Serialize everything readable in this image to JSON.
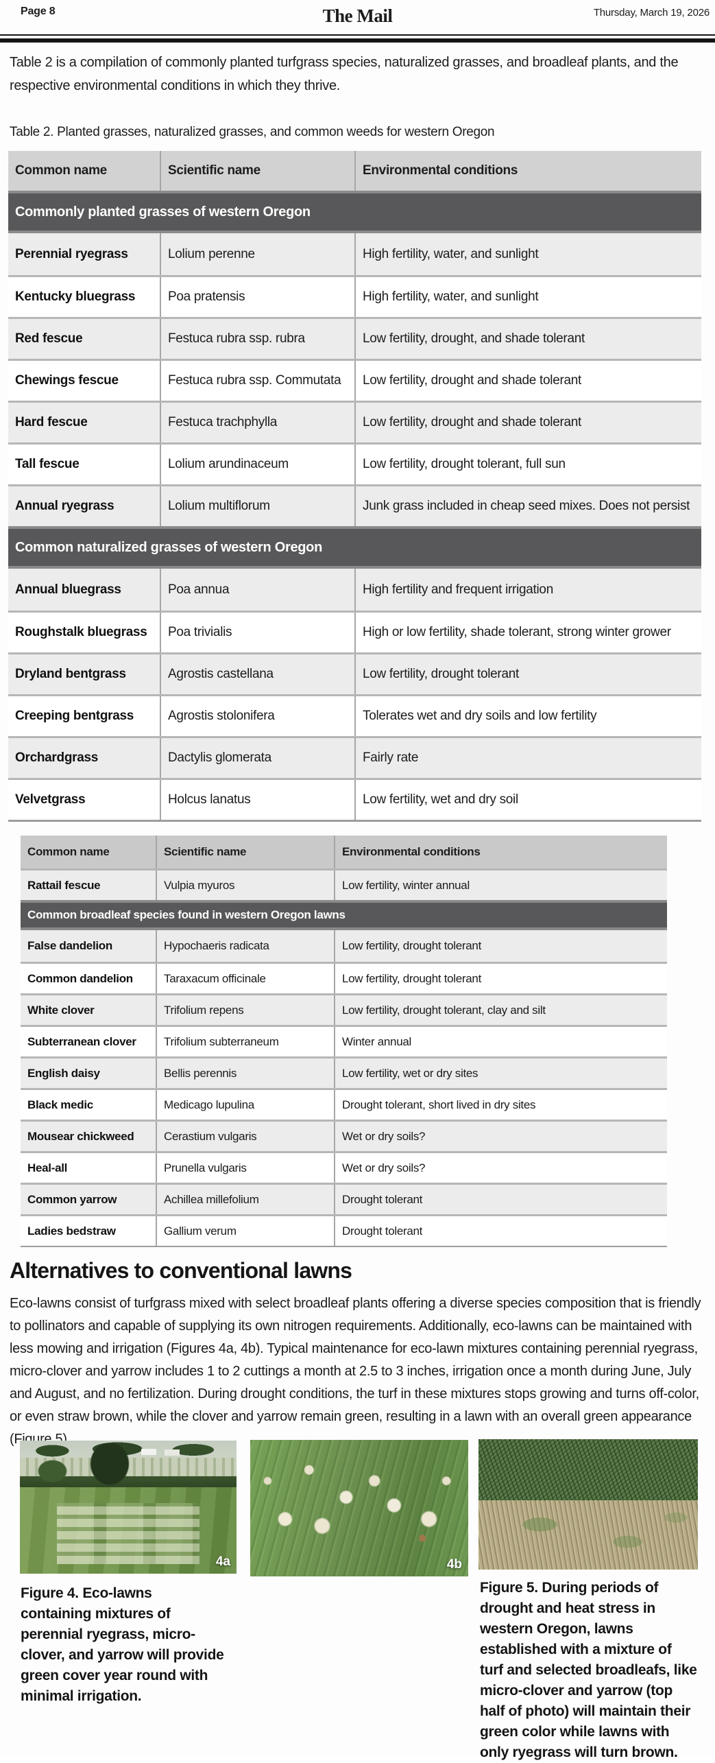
{
  "page": {
    "number_label": "Page 8",
    "masthead": "The Mail",
    "date": "Thursday, March 19, 2026"
  },
  "intro": {
    "line1": "Table 2 is a compilation of commonly planted turfgrass species, naturalized grasses, and broadleaf plants, and the",
    "line2": "respective environmental conditions in which they thrive."
  },
  "table_caption": "Table 2. Planted grasses, naturalized grasses, and common weeds for western Oregon",
  "table1": {
    "headers": [
      "Common name",
      "Scientific name",
      "Environmental conditions"
    ],
    "sections": [
      {
        "title": "Commonly planted grasses of western Oregon",
        "rows": [
          [
            "Perennial ryegrass",
            "Lolium perenne",
            "High fertility, water, and sunlight"
          ],
          [
            "Kentucky bluegrass",
            "Poa pratensis",
            "High fertility, water, and sunlight"
          ],
          [
            "Red fescue",
            "Festuca rubra ssp. rubra",
            "Low fertility, drought, and shade tolerant"
          ],
          [
            "Chewings fescue",
            "Festuca rubra ssp. Commutata",
            "Low fertility, drought and shade tolerant"
          ],
          [
            "Hard fescue",
            "Festuca trachphylla",
            "Low fertility, drought and shade tolerant"
          ],
          [
            "Tall fescue",
            "Lolium arundinaceum",
            "Low fertility, drought tolerant, full sun"
          ],
          [
            "Annual ryegrass",
            "Lolium multiflorum",
            "Junk grass included in cheap seed mixes. Does not persist"
          ]
        ]
      },
      {
        "title": "Common naturalized grasses of western Oregon",
        "rows": [
          [
            "Annual bluegrass",
            "Poa annua",
            "High fertility and frequent irrigation"
          ],
          [
            "Roughstalk bluegrass",
            "Poa trivialis",
            "High or low fertility, shade tolerant, strong winter grower"
          ],
          [
            "Dryland bentgrass",
            "Agrostis castellana",
            "Low fertility, drought tolerant"
          ],
          [
            "Creeping bentgrass",
            "Agrostis stolonifera",
            "Tolerates wet and dry soils and low fertility"
          ],
          [
            "Orchardgrass",
            "Dactylis glomerata",
            "Fairly rate"
          ],
          [
            "Velvetgrass",
            "Holcus lanatus",
            "Low fertility, wet and dry soil"
          ]
        ]
      }
    ]
  },
  "table2": {
    "headers": [
      "Common name",
      "Scientific name",
      "Environmental conditions"
    ],
    "pre_rows": [
      [
        "Rattail fescue",
        "Vulpia myuros",
        "Low fertility, winter annual"
      ]
    ],
    "section_title": "Common broadleaf species found in western Oregon lawns",
    "rows": [
      [
        "False dandelion",
        "Hypochaeris radicata",
        "Low fertility, drought tolerant"
      ],
      [
        "Common dandelion",
        "Taraxacum officinale",
        "Low fertility, drought tolerant"
      ],
      [
        "White clover",
        "Trifolium repens",
        "Low fertility, drought tolerant, clay and silt"
      ],
      [
        "Subterranean clover",
        "Trifolium subterraneum",
        "Winter annual"
      ],
      [
        "English daisy",
        "Bellis perennis",
        "Low fertility, wet or dry sites"
      ],
      [
        "Black medic",
        "Medicago lupulina",
        "Drought tolerant, short lived in dry sites"
      ],
      [
        "Mousear chickweed",
        "Cerastium vulgaris",
        "Wet or dry soils?"
      ],
      [
        "Heal-all",
        "Prunella vulgaris",
        "Wet or dry soils?"
      ],
      [
        "Common yarrow",
        "Achillea millefolium",
        "Drought tolerant"
      ],
      [
        "Ladies bedstraw",
        "Gallium verum",
        "Drought tolerant"
      ]
    ]
  },
  "alternatives": {
    "heading": "Alternatives to conventional lawns",
    "body": "Eco-lawns consist of turfgrass mixed with select broadleaf plants offering a diverse species composition that is friendly to pollinators and capable of supplying its own nitrogen requirements. Additionally, eco-lawns can be maintained with less mowing and irrigation (Figures 4a, 4b). Typical maintenance for eco-lawn mixtures containing perennial ryegrass, micro-clover and yarrow includes 1 to 2 cuttings a month at 2.5 to 3 inches, irrigation once a month during June, July and August, and no fertilization. During drought conditions, the turf in these mixtures stops growing and turns off-color, or even straw brown, while the clover and yarrow remain green, resulting in a lawn with an overall green appearance (Figure 5)."
  },
  "figures": {
    "fig4a_label": "4a",
    "fig4b_label": "4b",
    "fig4_caption": "Figure 4. Eco-lawns containing mixtures of perennial ryegrass, micro-clover, and yarrow will provide green cover year round with minimal irrigation.",
    "fig5_caption": "Figure 5. During periods of drought and heat stress in western Oregon, lawns established with a mixture of turf and selected broadleafs, like micro-clover and yarrow (top half of photo) will maintain their green color while lawns with only ryegrass will turn brown."
  },
  "colors": {
    "section_header_bg": "#58585a",
    "table_header_bg": "#d2d2d2",
    "row_alt_bg": "#ececec",
    "rule": "#151515"
  }
}
